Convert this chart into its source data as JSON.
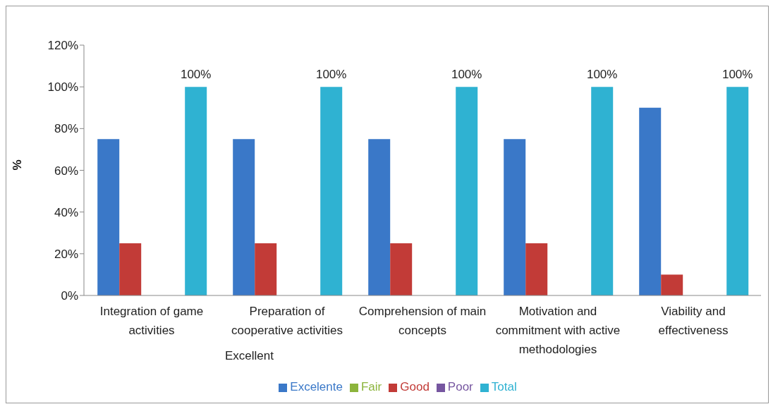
{
  "chart_data": {
    "type": "bar",
    "ylabel": "%",
    "categories": [
      "Integration of game activities",
      "Preparation  of cooperative activities",
      "Comprehension of main concepts",
      "Motivation and commitment with active methodologies",
      "Viability and effectiveness"
    ],
    "series": [
      {
        "name": "Excelente",
        "color": "#3a78c8",
        "values": [
          75,
          75,
          75,
          75,
          90
        ]
      },
      {
        "name": "Good",
        "color": "#c23b37",
        "values": [
          25,
          25,
          25,
          25,
          10
        ]
      },
      {
        "name": "Fair",
        "color": "#8cb43c",
        "values": [
          0,
          0,
          0,
          0,
          0
        ]
      },
      {
        "name": "Poor",
        "color": "#7656a0",
        "values": [
          0,
          0,
          0,
          0,
          0
        ]
      },
      {
        "name": "Total",
        "color": "#2fb2d2",
        "values": [
          100,
          100,
          100,
          100,
          100
        ],
        "value_labels": [
          "100%",
          "100%",
          "100%",
          "100%",
          "100%"
        ]
      }
    ],
    "ylim": [
      0,
      120
    ],
    "yticks": [
      {
        "value": 0,
        "label": "0%"
      },
      {
        "value": 20,
        "label": "20%"
      },
      {
        "value": 40,
        "label": "40%"
      },
      {
        "value": 60,
        "label": "60%"
      },
      {
        "value": 80,
        "label": "80%"
      },
      {
        "value": 100,
        "label": "100%"
      },
      {
        "value": 120,
        "label": "120%"
      }
    ],
    "grid": false,
    "legend": "bottom",
    "annotations": [
      "Excellent"
    ]
  }
}
